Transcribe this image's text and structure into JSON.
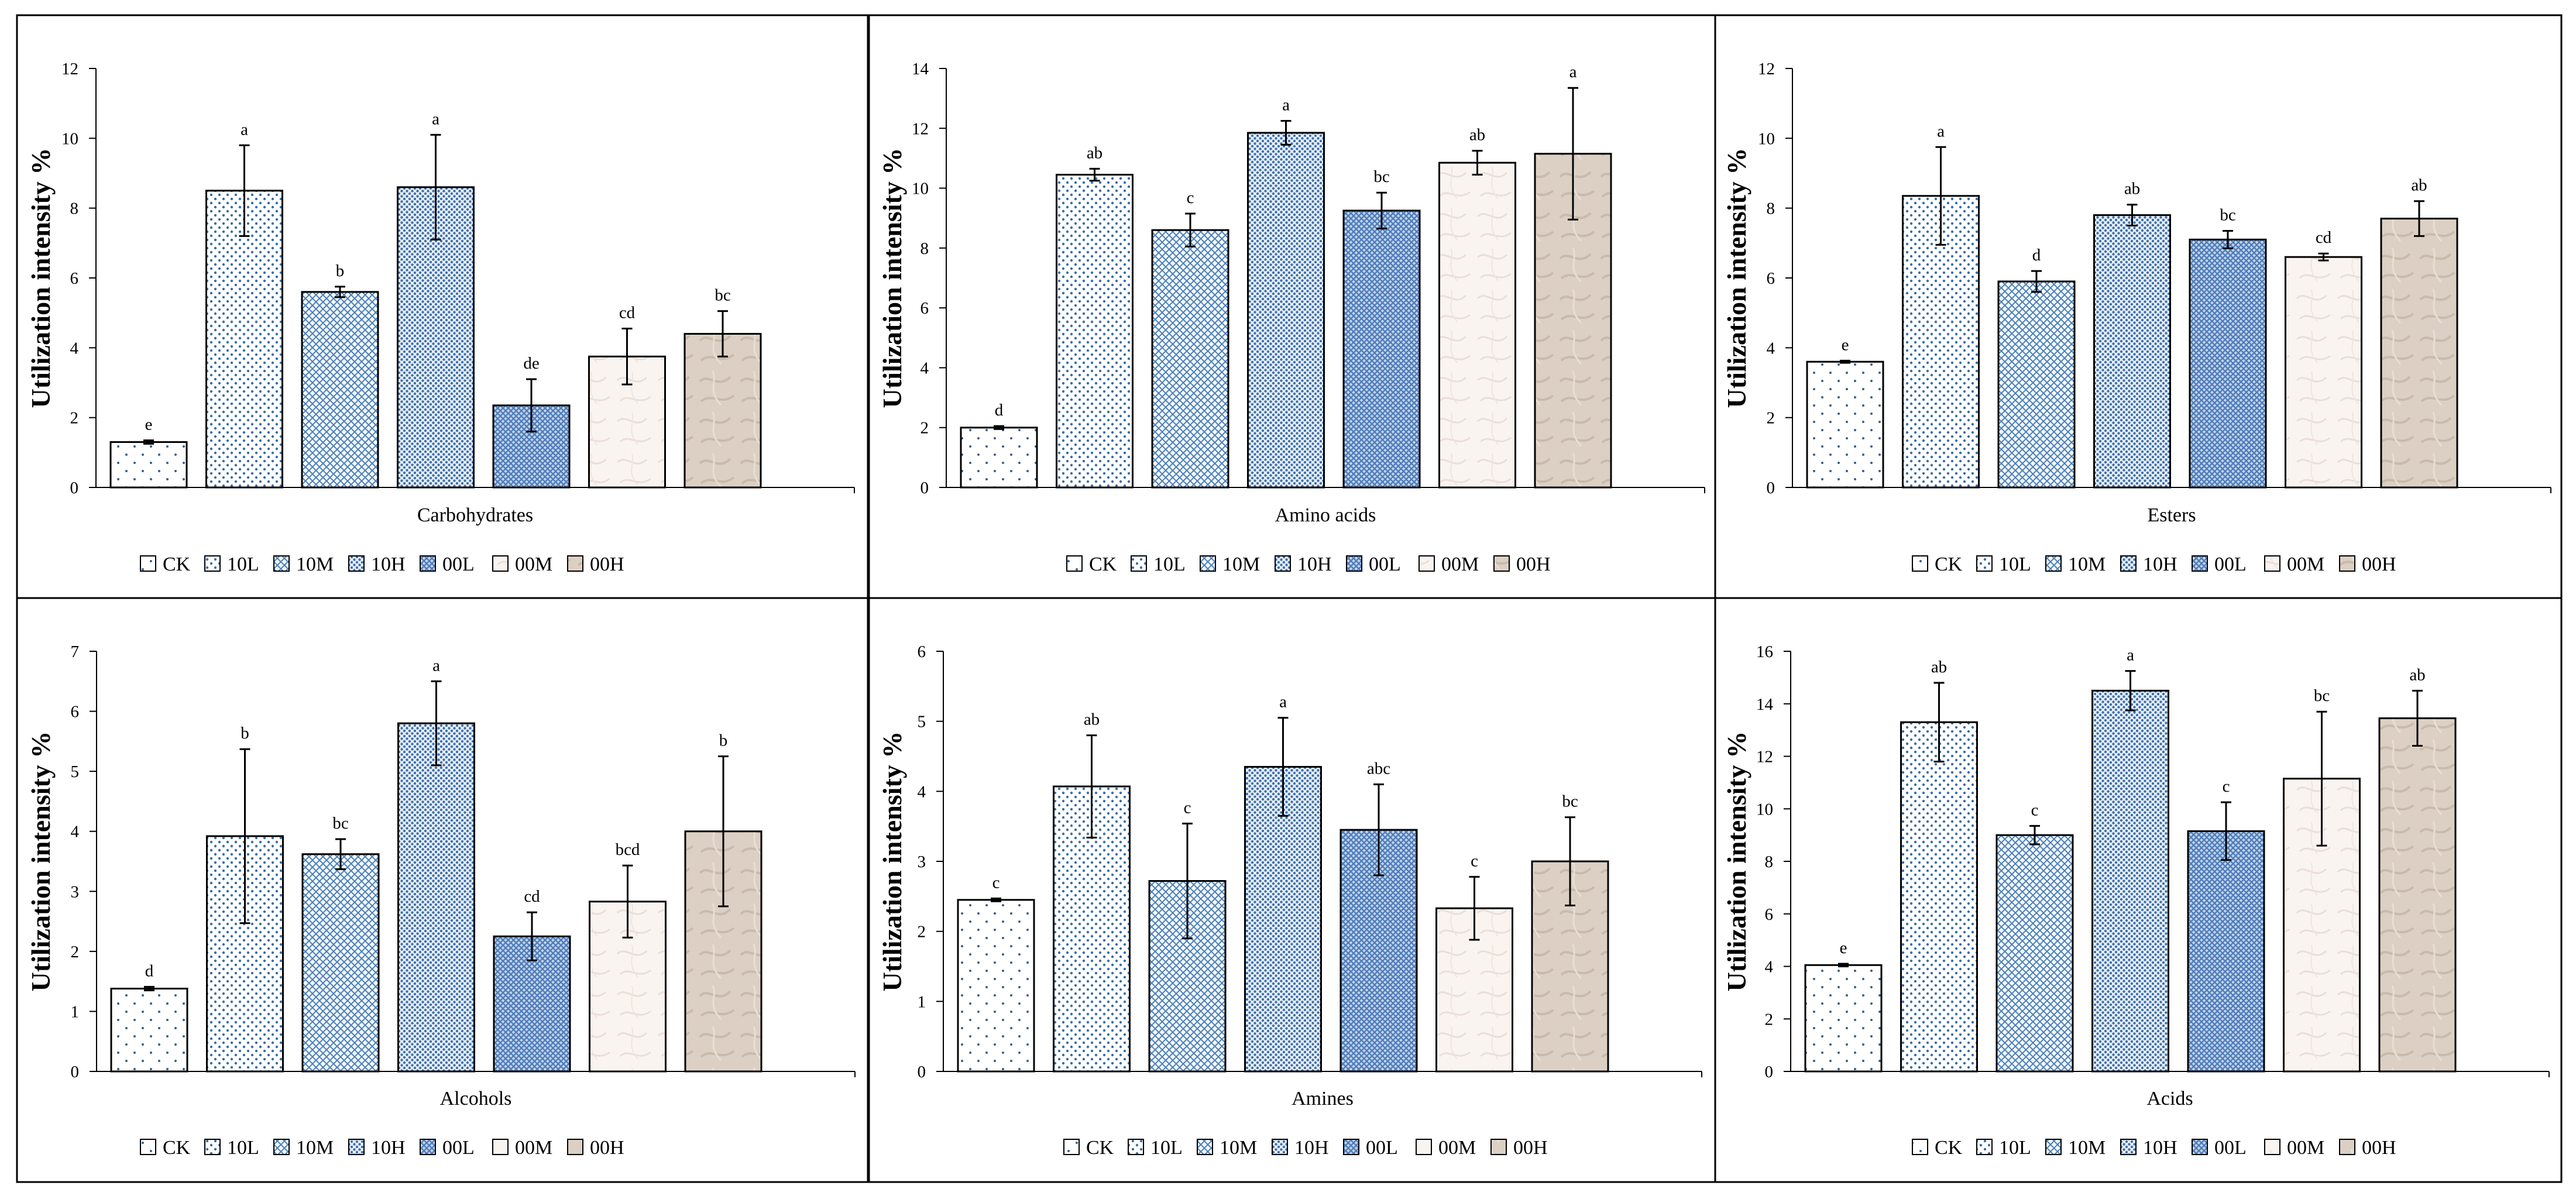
{
  "figure": {
    "ylabel": "Utilization intensity %",
    "legend_entries": [
      "CK",
      "10L",
      "10M",
      "10H",
      "00L",
      "00M",
      "00H"
    ]
  },
  "chart_data": [
    {
      "type": "bar",
      "title": "",
      "xlabel": "Carbohydrates",
      "ylabel": "Utilization intensity %",
      "ylim": [
        0,
        12
      ],
      "yticks": [
        0,
        2,
        4,
        6,
        8,
        10,
        12
      ],
      "categories": [
        "CK",
        "10L",
        "10M",
        "10H",
        "00L",
        "00M",
        "00H"
      ],
      "values": [
        1.3,
        8.5,
        5.6,
        8.6,
        2.35,
        3.75,
        4.4
      ],
      "errors": [
        0.05,
        1.3,
        0.15,
        1.5,
        0.75,
        0.8,
        0.65
      ],
      "labels": [
        "e",
        "a",
        "b",
        "a",
        "de",
        "cd",
        "bc"
      ],
      "legend": "bottom"
    },
    {
      "type": "bar",
      "title": "",
      "xlabel": "Amino acids",
      "ylabel": "Utilization intensity %",
      "ylim": [
        0,
        14
      ],
      "yticks": [
        0,
        2,
        4,
        6,
        8,
        10,
        12,
        14
      ],
      "categories": [
        "CK",
        "10L",
        "10M",
        "10H",
        "00L",
        "00M",
        "00H"
      ],
      "values": [
        2.0,
        10.45,
        8.6,
        11.85,
        9.25,
        10.85,
        11.15
      ],
      "errors": [
        0.05,
        0.2,
        0.55,
        0.4,
        0.6,
        0.4,
        2.2
      ],
      "labels": [
        "d",
        "ab",
        "c",
        "a",
        "bc",
        "ab",
        "a"
      ],
      "legend": "bottom"
    },
    {
      "type": "bar",
      "title": "",
      "xlabel": "Esters",
      "ylabel": "Utilization intensity %",
      "ylim": [
        0,
        12
      ],
      "yticks": [
        0,
        2,
        4,
        6,
        8,
        10,
        12
      ],
      "categories": [
        "CK",
        "10L",
        "10M",
        "10H",
        "00L",
        "00M",
        "00H"
      ],
      "values": [
        3.6,
        8.35,
        5.9,
        7.8,
        7.1,
        6.6,
        7.7
      ],
      "errors": [
        0.03,
        1.4,
        0.3,
        0.3,
        0.25,
        0.1,
        0.5
      ],
      "labels": [
        "e",
        "a",
        "d",
        "ab",
        "bc",
        "cd",
        "ab"
      ],
      "legend": "bottom"
    },
    {
      "type": "bar",
      "title": "",
      "xlabel": "Alcohols",
      "ylabel": "Utilization intensity %",
      "ylim": [
        0,
        7
      ],
      "yticks": [
        0,
        1,
        2,
        3,
        4,
        5,
        6,
        7
      ],
      "categories": [
        "CK",
        "10L",
        "10M",
        "10H",
        "00L",
        "00M",
        "00H"
      ],
      "values": [
        1.38,
        3.92,
        3.62,
        5.8,
        2.25,
        2.83,
        4.0
      ],
      "errors": [
        0.03,
        1.45,
        0.25,
        0.7,
        0.4,
        0.6,
        1.25
      ],
      "labels": [
        "d",
        "b",
        "bc",
        "a",
        "cd",
        "bcd",
        "b"
      ],
      "legend": "bottom"
    },
    {
      "type": "bar",
      "title": "",
      "xlabel": "Amines",
      "ylabel": "Utilization intensity %",
      "ylim": [
        0,
        6
      ],
      "yticks": [
        0,
        1,
        2,
        3,
        4,
        5,
        6
      ],
      "categories": [
        "CK",
        "10L",
        "10M",
        "10H",
        "00L",
        "00M",
        "00H"
      ],
      "values": [
        2.45,
        4.07,
        2.72,
        4.35,
        3.45,
        2.33,
        3.0
      ],
      "errors": [
        0.02,
        0.73,
        0.82,
        0.7,
        0.65,
        0.45,
        0.63
      ],
      "labels": [
        "c",
        "ab",
        "c",
        "a",
        "abc",
        "c",
        "bc"
      ],
      "legend": "bottom"
    },
    {
      "type": "bar",
      "title": "",
      "xlabel": "Acids",
      "ylabel": "Utilization intensity %",
      "ylim": [
        0,
        16
      ],
      "yticks": [
        0,
        2,
        4,
        6,
        8,
        10,
        12,
        14,
        16
      ],
      "categories": [
        "CK",
        "10L",
        "10M",
        "10H",
        "00L",
        "00M",
        "00H"
      ],
      "values": [
        4.05,
        13.3,
        9.0,
        14.5,
        9.15,
        11.15,
        13.45
      ],
      "errors": [
        0.05,
        1.5,
        0.35,
        0.75,
        1.1,
        2.55,
        1.05
      ],
      "labels": [
        "e",
        "ab",
        "c",
        "a",
        "c",
        "bc",
        "ab"
      ],
      "legend": "bottom"
    }
  ]
}
